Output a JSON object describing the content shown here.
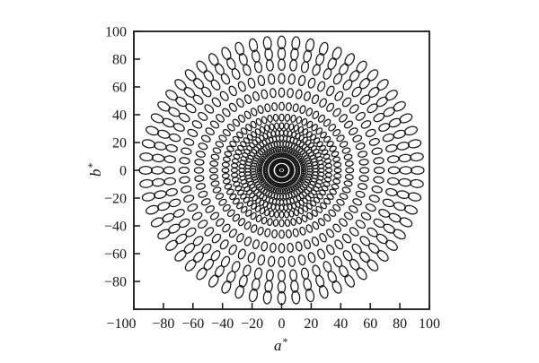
{
  "figure": {
    "background": "#ffffff",
    "ink": "#161616"
  },
  "chart_data": {
    "type": "scatter",
    "subtype": "ellipse-field",
    "title": "",
    "xlabel_letter": "a",
    "xlabel_sup": "*",
    "ylabel_letter": "b",
    "ylabel_sup": "*",
    "xlim": [
      -100,
      100
    ],
    "ylim": [
      -100,
      100
    ],
    "grid": "off",
    "legend": "none",
    "x_ticks": [
      -100,
      -80,
      -60,
      -40,
      -20,
      0,
      20,
      40,
      60,
      80,
      100
    ],
    "x_tick_labels": [
      "−100",
      "−80",
      "−60",
      "−40",
      "−20",
      "0",
      "20",
      "40",
      "60",
      "80",
      "100"
    ],
    "y_ticks": [
      100,
      80,
      60,
      40,
      20,
      0,
      -20,
      -40,
      -60,
      -80,
      -100
    ],
    "y_tick_labels": [
      "100",
      "80",
      "60",
      "40",
      "20",
      "0",
      "−20",
      "−40",
      "−60",
      "−80",
      ""
    ],
    "ellipse_field": {
      "center": [
        0,
        0
      ],
      "orientation": "radial",
      "spoke_step_deg": 6,
      "spoke_count": 60,
      "ring_radii": [
        3,
        7,
        11,
        15,
        19,
        23,
        27,
        32,
        38,
        46,
        56,
        66,
        76,
        84,
        92
      ],
      "semi_axis_radial_base": 1.0,
      "semi_axis_radial_slope": 0.038,
      "semi_axis_tangential_base": 0.8,
      "semi_axis_tangential_slope": 0.021,
      "stroke_color": "#161616",
      "center_dot_radius_units": 1.0
    }
  }
}
